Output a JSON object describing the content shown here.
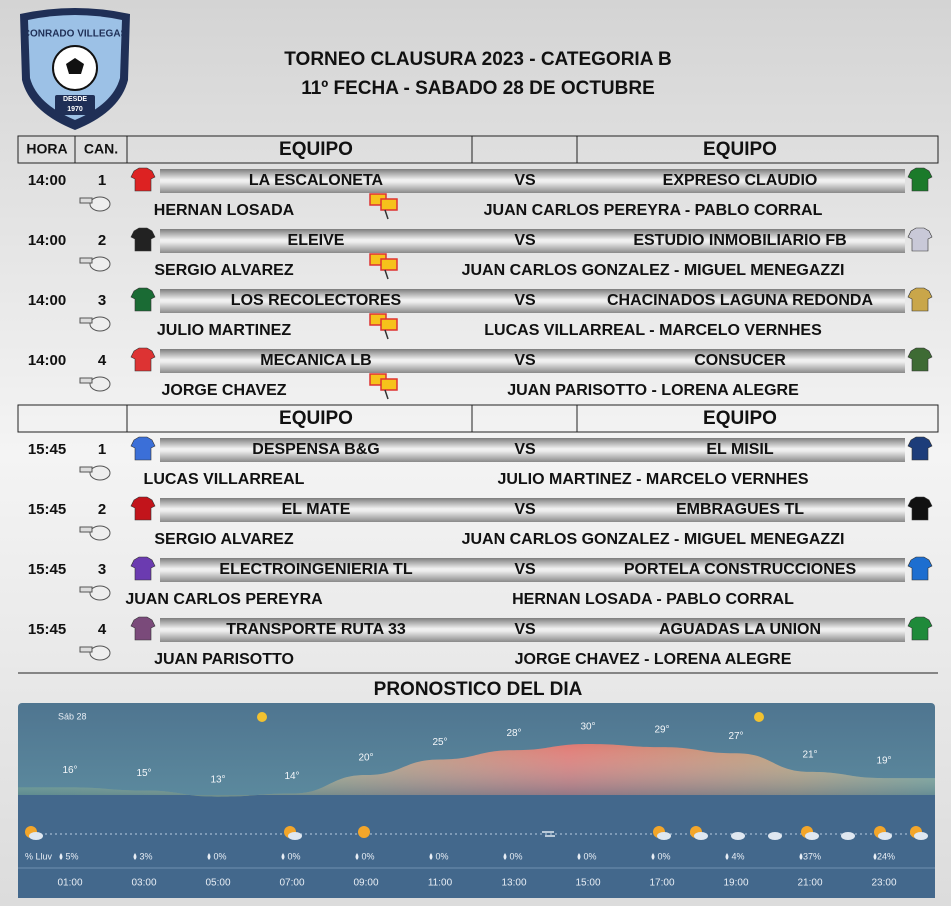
{
  "header": {
    "logo": {
      "name": "CONRADO VILLEGAS",
      "since": "DESDE",
      "year": "1970"
    },
    "title": "TORNEO CLAUSURA 2023 - CATEGORIA B",
    "subtitle": "11º FECHA - SABADO 28 DE OCTUBRE"
  },
  "blocks": [
    {
      "header": [
        "HORA",
        "CAN.",
        "EQUIPO",
        "EQUIPO"
      ],
      "matches": [
        {
          "time": "14:00",
          "field": "1",
          "home": "LA ESCALONETA",
          "vs": "VS",
          "away": "EXPRESO CLAUDIO",
          "referee": "HERNAN LOSADA",
          "assistants": "JUAN CARLOS PEREYRA - PABLO CORRAL"
        },
        {
          "time": "14:00",
          "field": "2",
          "home": "ELEIVE",
          "vs": "VS",
          "away": "ESTUDIO INMOBILIARIO FB",
          "referee": "SERGIO ALVAREZ",
          "assistants": "JUAN CARLOS GONZALEZ - MIGUEL MENEGAZZI"
        },
        {
          "time": "14:00",
          "field": "3",
          "home": "LOS RECOLECTORES",
          "vs": "VS",
          "away": "CHACINADOS LAGUNA REDONDA",
          "referee": "JULIO MARTINEZ",
          "assistants": "LUCAS VILLARREAL - MARCELO VERNHES"
        },
        {
          "time": "14:00",
          "field": "4",
          "home": "MECANICA LB",
          "vs": "VS",
          "away": "CONSUCER",
          "referee": "JORGE CHAVEZ",
          "assistants": "JUAN PARISOTTO - LORENA ALEGRE"
        }
      ]
    },
    {
      "header": [
        "EQUIPO",
        "EQUIPO"
      ],
      "matches": [
        {
          "time": "15:45",
          "field": "1",
          "home": "DESPENSA B&G",
          "vs": "VS",
          "away": "EL MISIL",
          "referee": "LUCAS VILLARREAL",
          "assistants": "JULIO MARTINEZ - MARCELO VERNHES"
        },
        {
          "time": "15:45",
          "field": "2",
          "home": "EL MATE",
          "vs": "VS",
          "away": "EMBRAGUES TL",
          "referee": "SERGIO ALVAREZ",
          "assistants": "JUAN CARLOS GONZALEZ - MIGUEL MENEGAZZI"
        },
        {
          "time": "15:45",
          "field": "3",
          "home": "ELECTROINGENIERIA TL",
          "vs": "VS",
          "away": "PORTELA CONSTRUCCIONES",
          "referee": "JUAN CARLOS PEREYRA",
          "assistants": "HERNAN LOSADA - PABLO CORRAL"
        },
        {
          "time": "15:45",
          "field": "4",
          "home": "TRANSPORTE RUTA 33",
          "vs": "VS",
          "away": "AGUADAS LA UNION",
          "referee": "JUAN PARISOTTO",
          "assistants": "JORGE CHAVEZ - LORENA ALEGRE"
        }
      ]
    }
  ],
  "forecast": {
    "title": "PRONOSTICO DEL DIA",
    "day": "Sáb 28",
    "rain_label": "% Lluv",
    "temps": [
      {
        "value": 16,
        "label": "16°"
      },
      {
        "value": 15,
        "label": "15°"
      },
      {
        "value": 13,
        "label": "13°"
      },
      {
        "value": 14,
        "label": "14°"
      },
      {
        "value": 20,
        "label": "20°"
      },
      {
        "value": 25,
        "label": "25°"
      },
      {
        "value": 28,
        "label": "28°"
      },
      {
        "value": 30,
        "label": "30°"
      },
      {
        "value": 29,
        "label": "29°"
      },
      {
        "value": 27,
        "label": "27°"
      },
      {
        "value": 21,
        "label": "21°"
      },
      {
        "value": 19,
        "label": "19°"
      }
    ],
    "rain": [
      "5%",
      "3%",
      "0%",
      "0%",
      "0%",
      "0%",
      "0%",
      "0%",
      "0%",
      "4%",
      "37%",
      "24%"
    ],
    "times": [
      "01:00",
      "03:00",
      "05:00",
      "07:00",
      "09:00",
      "11:00",
      "13:00",
      "15:00",
      "17:00",
      "19:00",
      "21:00",
      "23:00"
    ]
  }
}
